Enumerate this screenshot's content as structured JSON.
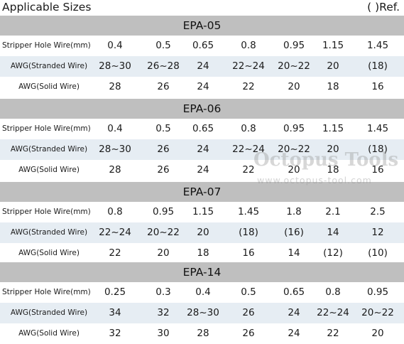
{
  "header": {
    "title": "Applicable Sizes",
    "ref_note": "(  )Ref."
  },
  "tables": [
    {
      "model": "EPA-05",
      "rows": [
        {
          "label": "Stripper Hole Wire(mm)",
          "values": [
            "0.4",
            "0.5",
            "0.65",
            "0.8",
            "0.95",
            "1.15",
            "1.45"
          ]
        },
        {
          "label": "AWG(Stranded Wire)",
          "values": [
            "28~30",
            "26~28",
            "24",
            "22~24",
            "20~22",
            "20",
            "(18)"
          ]
        },
        {
          "label": "AWG(Solid Wire)",
          "values": [
            "28",
            "26",
            "24",
            "22",
            "20",
            "18",
            "16"
          ]
        }
      ]
    },
    {
      "model": "EPA-06",
      "rows": [
        {
          "label": "Stripper Hole Wire(mm)",
          "values": [
            "0.4",
            "0.5",
            "0.65",
            "0.8",
            "0.95",
            "1.15",
            "1.45"
          ]
        },
        {
          "label": "AWG(Stranded Wire)",
          "values": [
            "28~30",
            "26",
            "24",
            "22~24",
            "20~22",
            "20",
            "(18)"
          ]
        },
        {
          "label": "AWG(Solid Wire)",
          "values": [
            "28",
            "26",
            "24",
            "22",
            "20",
            "18",
            "16"
          ]
        }
      ]
    },
    {
      "model": "EPA-07",
      "rows": [
        {
          "label": "Stripper Hole Wire(mm)",
          "values": [
            "0.8",
            "0.95",
            "1.15",
            "1.45",
            "1.8",
            "2.1",
            "2.5"
          ]
        },
        {
          "label": "AWG(Stranded Wire)",
          "values": [
            "22~24",
            "20~22",
            "20",
            "(18)",
            "(16)",
            "14",
            "12"
          ]
        },
        {
          "label": "AWG(Solid Wire)",
          "values": [
            "22",
            "20",
            "18",
            "16",
            "14",
            "(12)",
            "(10)"
          ]
        }
      ]
    },
    {
      "model": "EPA-14",
      "rows": [
        {
          "label": "Stripper Hole Wire(mm)",
          "values": [
            "0.25",
            "0.3",
            "0.4",
            "0.5",
            "0.65",
            "0.8",
            "0.95"
          ]
        },
        {
          "label": "AWG(Stranded Wire)",
          "values": [
            "34",
            "32",
            "28~30",
            "26",
            "24",
            "22~24",
            "20~22"
          ]
        },
        {
          "label": "AWG(Solid Wire)",
          "values": [
            "32",
            "30",
            "28",
            "26",
            "24",
            "22",
            "20"
          ]
        }
      ]
    }
  ],
  "watermark": {
    "brand": "Octopus Tools",
    "url": "www.octopus-tool.com"
  }
}
